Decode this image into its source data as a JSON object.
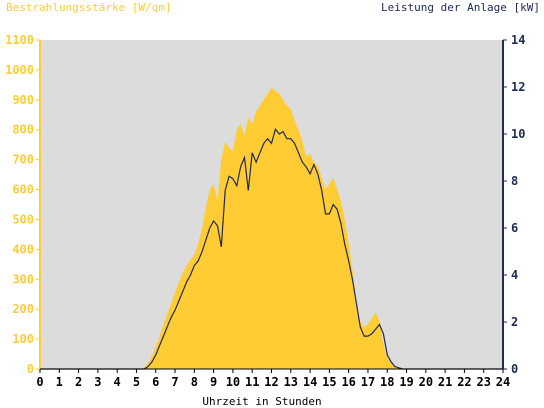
{
  "chart_data": {
    "type": "area",
    "left_axis_label": "Bestrahlungsstärke [W/qm]",
    "right_axis_label": "Leistung der Anlage [kW]",
    "xlabel": "Uhrzeit in Stunden",
    "xlim": [
      0,
      24
    ],
    "left_ylim": [
      0,
      1100
    ],
    "right_ylim": [
      0,
      14
    ],
    "x_ticks": [
      "0",
      "1",
      "2",
      "3",
      "4",
      "5",
      "6",
      "7",
      "8",
      "9",
      "10",
      "11",
      "12",
      "13",
      "14",
      "15",
      "16",
      "17",
      "18",
      "19",
      "20",
      "21",
      "22",
      "23",
      "24"
    ],
    "left_ticks": [
      "0",
      "100",
      "200",
      "300",
      "400",
      "500",
      "600",
      "700",
      "800",
      "900",
      "1000",
      "1100"
    ],
    "right_ticks": [
      "0",
      "2",
      "4",
      "6",
      "8",
      "10",
      "12",
      "14"
    ],
    "colors": {
      "irradiance": "#ffcc33",
      "power": "#1f2a55",
      "left_axis_text": "#ffcc33",
      "right_axis_text": "#1f2a55",
      "plot_background": "#dcdcdc"
    },
    "series": [
      {
        "key": "irradiance",
        "unit": "W/qm",
        "x": [
          0,
          5.2,
          5.4,
          5.6,
          5.8,
          6.0,
          6.2,
          6.4,
          6.6,
          6.8,
          7.0,
          7.2,
          7.4,
          7.6,
          7.8,
          8.0,
          8.2,
          8.4,
          8.6,
          8.8,
          9.0,
          9.2,
          9.4,
          9.6,
          9.8,
          10.0,
          10.2,
          10.4,
          10.6,
          10.8,
          11.0,
          11.2,
          11.4,
          11.6,
          11.8,
          12.0,
          12.2,
          12.4,
          12.6,
          12.8,
          13.0,
          13.2,
          13.4,
          13.6,
          13.8,
          14.0,
          14.2,
          14.4,
          14.6,
          14.8,
          15.0,
          15.2,
          15.4,
          15.6,
          15.8,
          16.0,
          16.2,
          16.4,
          16.6,
          16.8,
          17.0,
          17.2,
          17.4,
          17.6,
          17.8,
          18.0,
          18.2,
          18.4,
          18.6,
          18.8,
          19.0,
          19.2,
          19.4,
          19.6,
          24
        ],
        "values": [
          0,
          0,
          5,
          20,
          45,
          75,
          110,
          150,
          185,
          220,
          255,
          290,
          320,
          345,
          365,
          380,
          420,
          470,
          540,
          600,
          620,
          560,
          700,
          760,
          740,
          730,
          800,
          820,
          780,
          840,
          820,
          860,
          880,
          900,
          920,
          940,
          930,
          920,
          900,
          880,
          870,
          830,
          800,
          760,
          710,
          720,
          690,
          680,
          640,
          600,
          620,
          640,
          600,
          560,
          500,
          420,
          330,
          230,
          160,
          140,
          150,
          170,
          190,
          160,
          80,
          40,
          20,
          10,
          5,
          0,
          0,
          0,
          0,
          0,
          0
        ]
      },
      {
        "key": "power",
        "unit": "kW",
        "x": [
          0,
          5.4,
          5.6,
          5.8,
          6.0,
          6.2,
          6.4,
          6.6,
          6.8,
          7.0,
          7.2,
          7.4,
          7.6,
          7.8,
          8.0,
          8.2,
          8.4,
          8.6,
          8.8,
          9.0,
          9.2,
          9.4,
          9.6,
          9.8,
          10.0,
          10.2,
          10.4,
          10.6,
          10.8,
          11.0,
          11.2,
          11.4,
          11.6,
          11.8,
          12.0,
          12.2,
          12.4,
          12.6,
          12.8,
          13.0,
          13.2,
          13.4,
          13.6,
          13.8,
          14.0,
          14.2,
          14.4,
          14.6,
          14.8,
          15.0,
          15.2,
          15.4,
          15.6,
          15.8,
          16.0,
          16.2,
          16.4,
          16.6,
          16.8,
          17.0,
          17.2,
          17.4,
          17.6,
          17.8,
          18.0,
          18.2,
          18.4,
          18.6,
          18.8,
          19.0,
          19.2,
          24
        ],
        "values": [
          0,
          0,
          0.1,
          0.3,
          0.6,
          1.0,
          1.4,
          1.8,
          2.2,
          2.5,
          2.9,
          3.3,
          3.7,
          4.0,
          4.4,
          4.6,
          5.0,
          5.5,
          6.0,
          6.3,
          6.1,
          5.2,
          7.6,
          8.2,
          8.1,
          7.8,
          8.6,
          9.0,
          7.6,
          9.2,
          8.8,
          9.2,
          9.6,
          9.8,
          9.6,
          10.2,
          10.0,
          10.1,
          9.8,
          9.8,
          9.6,
          9.2,
          8.8,
          8.6,
          8.3,
          8.7,
          8.3,
          7.6,
          6.6,
          6.6,
          7.0,
          6.8,
          6.2,
          5.3,
          4.6,
          3.8,
          2.8,
          1.8,
          1.4,
          1.4,
          1.5,
          1.7,
          1.9,
          1.5,
          0.6,
          0.3,
          0.1,
          0.05,
          0,
          0,
          0,
          0
        ]
      }
    ],
    "grid": false,
    "legend": "none"
  }
}
